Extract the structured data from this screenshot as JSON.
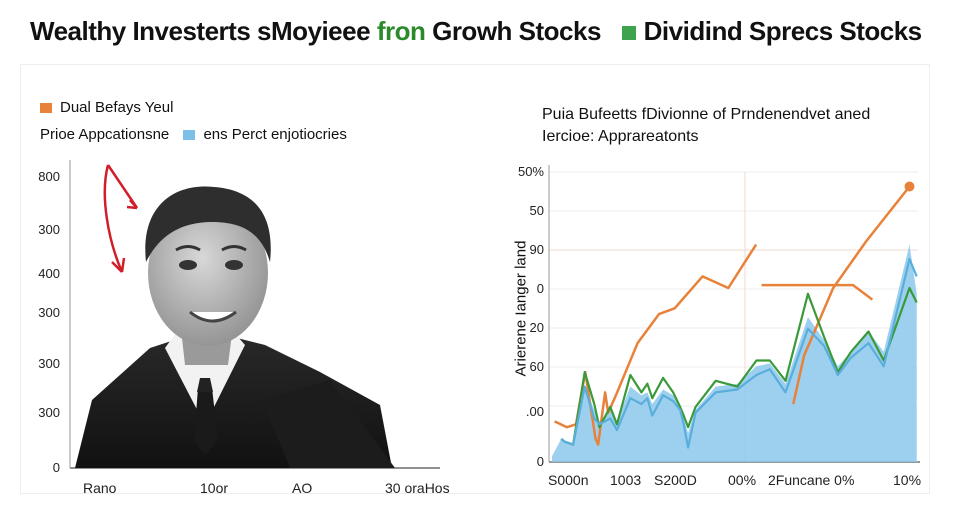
{
  "header": {
    "title_part1": "Wealthy Investerts sMoyieee",
    "title_part2": "fron",
    "title_part3": "Growh Stocks",
    "title_part4": "Dividind Sprecs Stocks"
  },
  "colors": {
    "orange": "#e8823a",
    "blue": "#7cc0e8",
    "green": "#3a9a3a",
    "red": "#d11f2a",
    "area": "#8cc8ec"
  },
  "left_panel": {
    "legend_1": "Dual Befays Yeul",
    "legend_2a": "Prioe Appcationsne",
    "legend_2b": "ens Perct enjotiocries",
    "y_ticks": [
      "800",
      "300",
      "400",
      "300",
      "300",
      "300",
      "0"
    ],
    "x_ticks": [
      "Rano",
      "10or",
      "AO",
      "30 oraHos"
    ],
    "photo_icon": "person-portrait-icon",
    "arrow_icon": "red-arrow-icon"
  },
  "chart_data": {
    "type": "line",
    "title": "Puia Bufeetts fDivionne of Prndenendvet aned Iercioe: Apprareatonts",
    "ylabel": "Arierene Ianger land",
    "y_ticks": [
      "50%",
      "50",
      "90",
      "0",
      "20",
      "60",
      ".00",
      "0"
    ],
    "x_ticks": [
      "S000n",
      "1003",
      "S200D",
      "00%",
      "2Funcane 0%",
      "10%"
    ],
    "ylim": [
      0,
      100
    ],
    "series": [
      {
        "name": "Orange line",
        "color": "#e8823a",
        "segments": [
          [
            [
              1.0,
              14
            ],
            [
              5.8,
              12
            ],
            [
              9.3,
              13
            ],
            [
              12.9,
              31
            ],
            [
              16.9,
              8
            ],
            [
              17.9,
              6
            ],
            [
              20.6,
              24
            ],
            [
              21.8,
              17
            ],
            [
              24.8,
              23
            ],
            [
              33.2,
              41
            ],
            [
              41.5,
              51
            ],
            [
              47.6,
              53
            ],
            [
              58.4,
              64
            ],
            [
              68.4,
              60
            ],
            [
              79.2,
              75
            ]
          ],
          [
            [
              81.3,
              61
            ],
            [
              81.8,
              61
            ],
            [
              116.8,
              61
            ],
            [
              124.3,
              56
            ]
          ],
          [
            [
              93.6,
              20
            ],
            [
              97.9,
              37
            ],
            [
              99.9,
              41
            ],
            [
              109.1,
              60
            ],
            [
              121.8,
              76
            ],
            [
              138.7,
              95
            ]
          ]
        ]
      },
      {
        "name": "Green line",
        "color": "#3a9a3a",
        "segments": [
          [
            [
              3.6,
              8
            ],
            [
              4.9,
              7
            ],
            [
              8.2,
              6
            ],
            [
              12.7,
              31
            ],
            [
              16.4,
              20
            ],
            [
              18.4,
              12
            ],
            [
              22.6,
              19
            ],
            [
              25.2,
              13
            ],
            [
              30.4,
              30
            ],
            [
              34.7,
              24
            ],
            [
              37.0,
              27
            ],
            [
              38.9,
              22
            ],
            [
              43.1,
              29
            ],
            [
              47.0,
              24
            ],
            [
              49.7,
              19
            ],
            [
              51.1,
              16
            ],
            [
              52.8,
              12
            ],
            [
              55.7,
              19
            ],
            [
              63.5,
              28
            ],
            [
              71.9,
              26
            ],
            [
              79.3,
              35
            ],
            [
              84.5,
              35
            ],
            [
              90.6,
              28
            ],
            [
              99.3,
              58
            ],
            [
              105.6,
              43
            ],
            [
              110.9,
              31
            ],
            [
              116.0,
              38
            ],
            [
              122.8,
              45
            ],
            [
              128.7,
              35
            ],
            [
              138.7,
              60
            ],
            [
              141.5,
              55
            ]
          ]
        ]
      },
      {
        "name": "Blue line",
        "color": "#5aaedc",
        "segments": [
          [
            [
              3.6,
              8
            ],
            [
              4.9,
              7
            ],
            [
              8.2,
              6
            ],
            [
              12.7,
              26
            ],
            [
              16.4,
              15
            ],
            [
              18.4,
              13
            ],
            [
              22.6,
              15
            ],
            [
              25.2,
              11
            ],
            [
              30.4,
              22
            ],
            [
              34.7,
              20
            ],
            [
              37.0,
              22
            ],
            [
              38.9,
              16
            ],
            [
              43.1,
              23
            ],
            [
              47.0,
              21
            ],
            [
              49.7,
              18
            ],
            [
              51.1,
              13
            ],
            [
              52.8,
              5
            ],
            [
              55.7,
              17
            ],
            [
              63.5,
              24
            ],
            [
              71.9,
              25
            ],
            [
              79.3,
              30
            ],
            [
              84.5,
              32
            ],
            [
              90.6,
              24
            ],
            [
              99.3,
              46
            ],
            [
              105.6,
              40
            ],
            [
              110.9,
              30
            ],
            [
              116.0,
              36
            ],
            [
              122.8,
              41
            ],
            [
              128.7,
              33
            ],
            [
              138.7,
              70
            ],
            [
              141.5,
              64
            ]
          ]
        ]
      },
      {
        "name": "Fill area",
        "color": "#8cc8ec",
        "points": [
          [
            0.0,
            2
          ],
          [
            3.6,
            8
          ],
          [
            4.9,
            7
          ],
          [
            8.2,
            6
          ],
          [
            12.7,
            26
          ],
          [
            16.4,
            18
          ],
          [
            18.4,
            14
          ],
          [
            22.6,
            18
          ],
          [
            25.2,
            14
          ],
          [
            30.4,
            26
          ],
          [
            34.7,
            23
          ],
          [
            37.0,
            24
          ],
          [
            38.9,
            20
          ],
          [
            43.1,
            25
          ],
          [
            47.0,
            23
          ],
          [
            49.7,
            19
          ],
          [
            51.1,
            15
          ],
          [
            52.8,
            10
          ],
          [
            55.7,
            18
          ],
          [
            63.5,
            26
          ],
          [
            71.9,
            27
          ],
          [
            79.3,
            33
          ],
          [
            84.5,
            34
          ],
          [
            90.6,
            27
          ],
          [
            99.3,
            50
          ],
          [
            105.6,
            42
          ],
          [
            110.9,
            33
          ],
          [
            116.0,
            38
          ],
          [
            122.8,
            45
          ],
          [
            128.7,
            38
          ],
          [
            138.7,
            75
          ],
          [
            141.5,
            58
          ],
          [
            141.5,
            0
          ],
          [
            0.0,
            0
          ]
        ]
      }
    ],
    "x_range": [
      0,
      142
    ],
    "end_marker": {
      "x": 138.7,
      "y": 95,
      "color": "#e8823a"
    }
  }
}
